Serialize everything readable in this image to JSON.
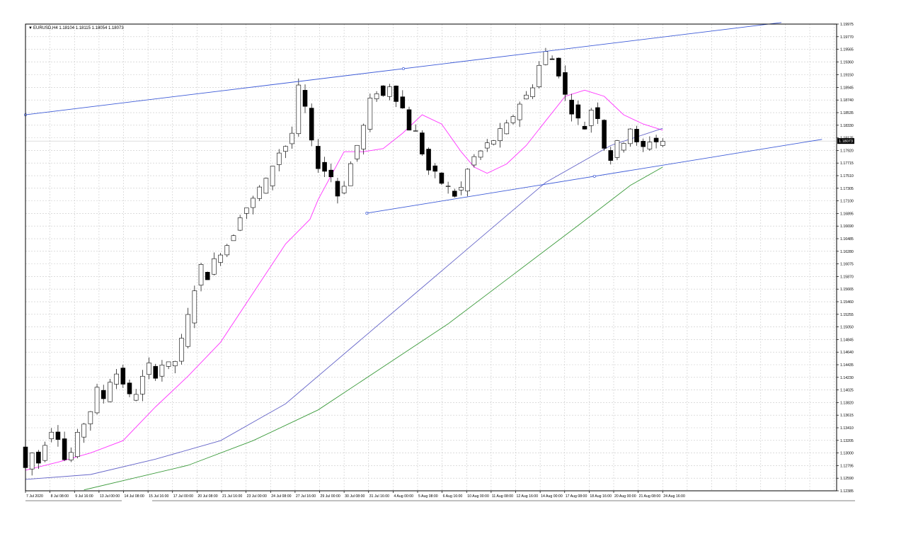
{
  "header": {
    "symbol_info": "EURUSD,H4  1.18104 1.18115 1.18054 1.18073"
  },
  "current_price_label": "1.18073",
  "colors": {
    "bull_candle": "#ffffff",
    "bear_candle": "#000000",
    "ma_fast": "#ff33ff",
    "ma_mid": "#6464c8",
    "ma_slow": "#3a9a3a",
    "trendline": "#3c5ad7",
    "grid": "#c8c8c8"
  },
  "chart_data": {
    "type": "candlestick",
    "title": "",
    "symbol": "EURUSD",
    "timeframe": "H4",
    "ylim": [
      1.12385,
      1.19975
    ],
    "grid": true,
    "y_ticks": [
      "1.19975",
      "1.19770",
      "1.19565",
      "1.19360",
      "1.19150",
      "1.18945",
      "1.18740",
      "1.18535",
      "1.18330",
      "1.18125",
      "1.17920",
      "1.17715",
      "1.17510",
      "1.17305",
      "1.17100",
      "1.16895",
      "1.16690",
      "1.16485",
      "1.16280",
      "1.16075",
      "1.15870",
      "1.15665",
      "1.15460",
      "1.15255",
      "1.15050",
      "1.14845",
      "1.14640",
      "1.14435",
      "1.14230",
      "1.14025",
      "1.13820",
      "1.13615",
      "1.13410",
      "1.13205",
      "1.13000",
      "1.12795",
      "1.12590",
      "1.12385"
    ],
    "x_ticks": [
      "7 Jul 2020",
      "8 Jul 08:00",
      "9 Jul 16:00",
      "13 Jul 00:00",
      "14 Jul 08:00",
      "15 Jul 16:00",
      "17 Jul 00:00",
      "20 Jul 08:00",
      "21 Jul 16:00",
      "23 Jul 00:00",
      "24 Jul 08:00",
      "27 Jul 16:00",
      "29 Jul 00:00",
      "30 Jul 08:00",
      "31 Jul 16:00",
      "4 Aug 00:00",
      "5 Aug 08:00",
      "6 Aug 16:00",
      "10 Aug 00:00",
      "11 Aug 08:00",
      "12 Aug 16:00",
      "14 Aug 00:00",
      "17 Aug 08:00",
      "18 Aug 16:00",
      "20 Aug 00:00",
      "21 Aug 08:00",
      "24 Aug 16:00"
    ],
    "close_path": [
      [
        0,
        1.131
      ],
      [
        4,
        1.1275
      ],
      [
        8,
        1.13
      ],
      [
        12,
        1.1285
      ],
      [
        16,
        1.132
      ],
      [
        20,
        1.134
      ],
      [
        24,
        1.133
      ],
      [
        28,
        1.129
      ],
      [
        32,
        1.13
      ],
      [
        36,
        1.1325
      ],
      [
        40,
        1.135
      ],
      [
        44,
        1.137
      ],
      [
        48,
        1.14
      ],
      [
        52,
        1.139
      ],
      [
        56,
        1.142
      ],
      [
        60,
        1.143
      ],
      [
        64,
        1.1415
      ],
      [
        68,
        1.139
      ],
      [
        72,
        1.14
      ],
      [
        76,
        1.142
      ],
      [
        80,
        1.144
      ],
      [
        84,
        1.143
      ],
      [
        88,
        1.1445
      ],
      [
        92,
        1.144
      ],
      [
        96,
        1.145
      ],
      [
        100,
        1.148
      ],
      [
        104,
        1.152
      ],
      [
        108,
        1.157
      ],
      [
        112,
        1.16
      ],
      [
        116,
        1.159
      ],
      [
        120,
        1.161
      ],
      [
        124,
        1.163
      ],
      [
        128,
        1.164
      ],
      [
        132,
        1.166
      ],
      [
        136,
        1.169
      ],
      [
        140,
        1.17
      ],
      [
        144,
        1.171
      ],
      [
        148,
        1.173
      ],
      [
        152,
        1.174
      ],
      [
        156,
        1.177
      ],
      [
        160,
        1.179
      ],
      [
        164,
        1.18
      ],
      [
        168,
        1.182
      ],
      [
        172,
        1.189
      ],
      [
        176,
        1.186
      ],
      [
        180,
        1.18
      ],
      [
        184,
        1.177
      ],
      [
        188,
        1.176
      ],
      [
        192,
        1.175
      ],
      [
        196,
        1.172
      ],
      [
        200,
        1.174
      ],
      [
        204,
        1.177
      ],
      [
        208,
        1.18
      ],
      [
        212,
        1.183
      ],
      [
        216,
        1.187
      ],
      [
        220,
        1.189
      ],
      [
        224,
        1.188
      ],
      [
        228,
        1.19
      ],
      [
        232,
        1.188
      ],
      [
        236,
        1.186
      ],
      [
        240,
        1.183
      ],
      [
        244,
        1.182
      ],
      [
        248,
        1.179
      ],
      [
        252,
        1.176
      ],
      [
        256,
        1.175
      ],
      [
        260,
        1.174
      ],
      [
        264,
        1.173
      ],
      [
        268,
        1.172
      ],
      [
        272,
        1.173
      ],
      [
        276,
        1.176
      ],
      [
        280,
        1.178
      ],
      [
        284,
        1.179
      ],
      [
        288,
        1.18
      ],
      [
        292,
        1.181
      ],
      [
        296,
        1.182
      ],
      [
        300,
        1.183
      ],
      [
        304,
        1.185
      ],
      [
        308,
        1.187
      ],
      [
        312,
        1.188
      ],
      [
        316,
        1.19
      ],
      [
        320,
        1.193
      ],
      [
        324,
        1.195
      ],
      [
        328,
        1.194
      ],
      [
        332,
        1.192
      ],
      [
        336,
        1.188
      ],
      [
        340,
        1.186
      ],
      [
        344,
        1.184
      ],
      [
        348,
        1.183
      ],
      [
        352,
        1.186
      ],
      [
        356,
        1.185
      ],
      [
        360,
        1.18
      ],
      [
        364,
        1.178
      ],
      [
        368,
        1.18
      ],
      [
        372,
        1.181
      ],
      [
        376,
        1.183
      ],
      [
        380,
        1.18
      ],
      [
        384,
        1.1795
      ],
      [
        388,
        1.181
      ],
      [
        392,
        1.1807
      ]
    ],
    "series": [
      {
        "key": "ma_fast",
        "values": [
          [
            0,
            1.1272
          ],
          [
            20,
            1.1285
          ],
          [
            40,
            1.13
          ],
          [
            60,
            1.132
          ],
          [
            80,
            1.1375
          ],
          [
            100,
            1.1425
          ],
          [
            120,
            1.148
          ],
          [
            140,
            1.156
          ],
          [
            160,
            1.164
          ],
          [
            175,
            1.168
          ],
          [
            180,
            1.1712
          ],
          [
            196,
            1.179
          ],
          [
            208,
            1.179
          ],
          [
            220,
            1.1795
          ],
          [
            232,
            1.182
          ],
          [
            244,
            1.185
          ],
          [
            256,
            1.1835
          ],
          [
            268,
            1.179
          ],
          [
            276,
            1.1765
          ],
          [
            284,
            1.1755
          ],
          [
            296,
            1.177
          ],
          [
            308,
            1.18
          ],
          [
            320,
            1.184
          ],
          [
            332,
            1.188
          ],
          [
            344,
            1.189
          ],
          [
            356,
            1.188
          ],
          [
            368,
            1.185
          ],
          [
            380,
            1.1835
          ],
          [
            392,
            1.1825
          ]
        ]
      },
      {
        "key": "ma_mid",
        "values": [
          [
            0,
            1.1257
          ],
          [
            40,
            1.1265
          ],
          [
            80,
            1.129
          ],
          [
            120,
            1.132
          ],
          [
            160,
            1.138
          ],
          [
            200,
            1.147
          ],
          [
            240,
            1.156
          ],
          [
            280,
            1.165
          ],
          [
            320,
            1.174
          ],
          [
            360,
            1.18
          ],
          [
            392,
            1.1828
          ]
        ]
      },
      {
        "key": "ma_slow",
        "values": [
          [
            36,
            1.124
          ],
          [
            60,
            1.1255
          ],
          [
            100,
            1.128
          ],
          [
            140,
            1.132
          ],
          [
            180,
            1.137
          ],
          [
            220,
            1.144
          ],
          [
            260,
            1.151
          ],
          [
            300,
            1.159
          ],
          [
            340,
            1.167
          ],
          [
            372,
            1.1735
          ],
          [
            392,
            1.1765
          ]
        ]
      }
    ],
    "trendlines": [
      {
        "from": [
          0,
          1.185
        ],
        "to": [
          465,
          1.2
        ]
      },
      {
        "from": [
          210,
          1.169
        ],
        "to": [
          490,
          1.181
        ]
      }
    ]
  }
}
